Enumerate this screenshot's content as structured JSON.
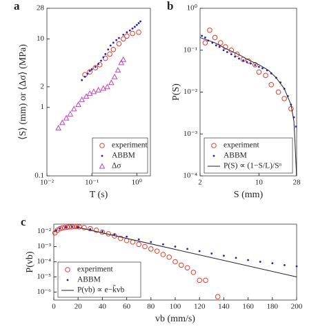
{
  "chart_data": [
    {
      "type": "scatter",
      "label": "a",
      "xlabel": "T (s)",
      "ylabel": "⟨S⟩ (mm) or ⟨Δσ⟩ (MPa)",
      "xlog": true,
      "ylog": true,
      "xlim": [
        0.01,
        2
      ],
      "ylim": [
        0.1,
        28
      ],
      "xticks": [
        {
          "value": 0.01,
          "label": "10⁻²"
        },
        {
          "value": 0.1,
          "label": "10⁻¹"
        },
        {
          "value": 1,
          "label": "10⁰"
        }
      ],
      "yticks": [
        0.1,
        1,
        2,
        10,
        28
      ],
      "legend": "lower right",
      "series": [
        {
          "name": "experiment",
          "color": "#e8392b",
          "marker": "circle",
          "x": [
            0.07,
            0.09,
            0.12,
            0.15,
            0.2,
            0.25,
            0.3,
            0.4,
            0.5,
            0.6,
            0.8,
            1.1
          ],
          "values": [
            3,
            3.3,
            3.8,
            4.2,
            5.2,
            6,
            7,
            8.5,
            10,
            11,
            12,
            12.5
          ]
        },
        {
          "name": "ABBM",
          "color": "#1f1fbf",
          "marker": "dot",
          "x": [
            0.06,
            0.07,
            0.08,
            0.09,
            0.1,
            0.12,
            0.14,
            0.16,
            0.18,
            0.2,
            0.23,
            0.26,
            0.3,
            0.35,
            0.4,
            0.5,
            0.6,
            0.7,
            0.8,
            0.9,
            1,
            1.1,
            1.2
          ],
          "values": [
            2.5,
            2.8,
            3.1,
            3.4,
            3.6,
            3.9,
            4.3,
            4.8,
            5.4,
            6,
            7,
            8,
            8.8,
            9.6,
            10.3,
            11.5,
            12.5,
            13.3,
            14.2,
            15,
            16,
            17,
            18
          ]
        },
        {
          "name": "Δσ",
          "color": "#c040c0",
          "marker": "triangle",
          "x": [
            0.018,
            0.022,
            0.027,
            0.033,
            0.04,
            0.05,
            0.06,
            0.075,
            0.09,
            0.11,
            0.14,
            0.18,
            0.22,
            0.27,
            0.32,
            0.38,
            0.45,
            0.5
          ],
          "values": [
            0.5,
            0.6,
            0.7,
            0.8,
            0.95,
            1.1,
            1.3,
            1.45,
            1.6,
            1.7,
            1.8,
            1.9,
            2,
            2.3,
            2.8,
            3.5,
            4.5,
            5
          ]
        }
      ]
    },
    {
      "type": "scatter",
      "label": "b",
      "xlabel": "S (mm)",
      "ylabel": "P(S)",
      "xlog": true,
      "ylog": true,
      "xlim": [
        2,
        28
      ],
      "ylim": [
        0.0001,
        1
      ],
      "xticks": [
        2,
        10,
        28
      ],
      "yticks": [
        {
          "value": 0.0001,
          "label": "10⁻⁴"
        },
        {
          "value": 0.001,
          "label": "10⁻³"
        },
        {
          "value": 0.01,
          "label": "10⁻²"
        },
        {
          "value": 0.1,
          "label": "10⁻¹"
        },
        {
          "value": 1,
          "label": "10⁰"
        }
      ],
      "legend": "lower left",
      "series": [
        {
          "name": "experiment",
          "color": "#e8392b",
          "marker": "circle",
          "x": [
            2.3,
            2.6,
            3,
            3.5,
            4,
            4.7,
            5.5,
            6.5,
            7.5,
            9,
            10,
            12,
            14,
            17,
            20,
            24
          ],
          "values": [
            0.15,
            0.3,
            0.2,
            0.15,
            0.12,
            0.1,
            0.08,
            0.06,
            0.055,
            0.045,
            0.03,
            0.025,
            0.015,
            0.01,
            0.007,
            0.004
          ]
        },
        {
          "name": "ABBM",
          "color": "#1f1fbf",
          "marker": "dot",
          "x": [
            2.1,
            2.3,
            2.5,
            2.8,
            3.1,
            3.4,
            3.8,
            4.2,
            4.7,
            5.2,
            5.8,
            6.5,
            7.2,
            8,
            9,
            10,
            11,
            12.5,
            14,
            16,
            18,
            20,
            22,
            24,
            26,
            27.5
          ],
          "values": [
            0.22,
            0.2,
            0.17,
            0.15,
            0.13,
            0.12,
            0.1,
            0.09,
            0.08,
            0.07,
            0.063,
            0.057,
            0.052,
            0.048,
            0.044,
            0.04,
            0.037,
            0.033,
            0.028,
            0.022,
            0.017,
            0.012,
            0.008,
            0.005,
            0.0025,
            0.0015
          ]
        },
        {
          "name": "P(S) ∝ (1−S/L)/Sᵅ",
          "color": "#222222",
          "marker": "line",
          "x": [
            2,
            3,
            4,
            6,
            8,
            10,
            13,
            16,
            20,
            24,
            26,
            27.5,
            27.9
          ],
          "values": [
            0.2,
            0.15,
            0.11,
            0.075,
            0.055,
            0.045,
            0.033,
            0.022,
            0.012,
            0.005,
            0.002,
            0.0002,
            0.0001
          ]
        }
      ]
    },
    {
      "type": "scatter",
      "label": "c",
      "xlabel": "vb (mm/s)",
      "ylabel": "P(vb)",
      "xlog": false,
      "ylog": true,
      "xlim": [
        0,
        200
      ],
      "ylim": [
        3e-07,
        0.03
      ],
      "xticks": [
        0,
        20,
        40,
        60,
        80,
        100,
        120,
        140,
        160,
        180,
        200
      ],
      "yticks": [
        {
          "value": 1e-06,
          "label": "10⁻⁶"
        },
        {
          "value": 1e-05,
          "label": "10⁻⁵"
        },
        {
          "value": 0.0001,
          "label": "10⁻⁴"
        },
        {
          "value": 0.001,
          "label": "10⁻³"
        },
        {
          "value": 0.01,
          "label": "10⁻²"
        }
      ],
      "legend": "lower left",
      "series": [
        {
          "name": "experiment",
          "color": "#e8392b",
          "marker": "circle",
          "x": [
            1,
            3,
            5,
            7,
            9,
            11,
            13,
            15,
            17,
            19,
            21,
            25,
            30,
            35,
            40,
            45,
            50,
            55,
            60,
            65,
            70,
            75,
            80,
            85,
            90,
            95,
            100,
            105,
            110,
            115,
            120,
            125,
            135
          ],
          "values": [
            0.008,
            0.012,
            0.015,
            0.017,
            0.018,
            0.019,
            0.02,
            0.02,
            0.021,
            0.021,
            0.02,
            0.018,
            0.015,
            0.012,
            0.009,
            0.007,
            0.005,
            0.0035,
            0.0025,
            0.002,
            0.0014,
            0.001,
            0.0007,
            0.0005,
            0.0003,
            0.0002,
            0.0001,
            6e-05,
            4e-05,
            2e-05,
            6e-06,
            6e-06,
            5e-07
          ]
        },
        {
          "name": "ABBM",
          "color": "#1f1fbf",
          "marker": "dot",
          "x": [
            2,
            5,
            10,
            15,
            20,
            30,
            40,
            50,
            60,
            70,
            80,
            90,
            100,
            110,
            120,
            130,
            140,
            150,
            160,
            170,
            180,
            190,
            200
          ],
          "values": [
            0.012,
            0.016,
            0.019,
            0.02,
            0.019,
            0.014,
            0.01,
            0.0065,
            0.0045,
            0.003,
            0.002,
            0.0014,
            0.001,
            0.0007,
            0.0005,
            0.00035,
            0.00025,
            0.00018,
            0.00013,
            0.0001,
            8e-05,
            6e-05,
            5e-05
          ]
        },
        {
          "name": "P(vb) ∝ e−k̃vb",
          "color": "#222222",
          "marker": "line",
          "x": [
            18,
            200
          ],
          "values": [
            0.02,
            1e-05
          ]
        }
      ]
    }
  ]
}
